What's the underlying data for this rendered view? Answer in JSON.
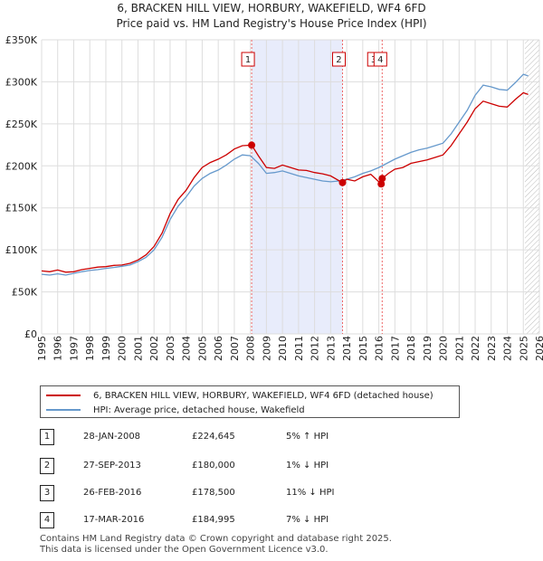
{
  "chart_data": {
    "type": "line",
    "title": "6, BRACKEN HILL VIEW, HORBURY, WAKEFIELD, WF4 6FD",
    "subtitle": "Price paid vs. HM Land Registry's House Price Index (HPI)",
    "xlim": [
      1995,
      2026
    ],
    "ylim": [
      0,
      350000
    ],
    "x_ticks": [
      "1995",
      "1996",
      "1997",
      "1998",
      "1999",
      "2000",
      "2001",
      "2002",
      "2003",
      "2004",
      "2005",
      "2006",
      "2007",
      "2008",
      "2009",
      "2010",
      "2011",
      "2012",
      "2013",
      "2014",
      "2015",
      "2016",
      "2017",
      "2018",
      "2019",
      "2020",
      "2021",
      "2022",
      "2023",
      "2024",
      "2025",
      "2026"
    ],
    "y_ticks": [
      {
        "value": 0,
        "label": "£0"
      },
      {
        "value": 50000,
        "label": "£50K"
      },
      {
        "value": 100000,
        "label": "£100K"
      },
      {
        "value": 150000,
        "label": "£150K"
      },
      {
        "value": 200000,
        "label": "£200K"
      },
      {
        "value": 250000,
        "label": "£250K"
      },
      {
        "value": 300000,
        "label": "£300K"
      },
      {
        "value": 350000,
        "label": "£350K"
      }
    ],
    "grid": true,
    "shaded_region": [
      2008.08,
      2013.74
    ],
    "future_hatch_from": 2025.1,
    "series": [
      {
        "name": "6, BRACKEN HILL VIEW, HORBURY, WAKEFIELD, WF4 6FD (detached house)",
        "color": "#cc0000",
        "points": [
          [
            1995,
            75000
          ],
          [
            1995.5,
            74000
          ],
          [
            1996,
            76000
          ],
          [
            1996.5,
            73500
          ],
          [
            1997,
            74000
          ],
          [
            1997.5,
            76500
          ],
          [
            1998,
            78000
          ],
          [
            1998.5,
            79500
          ],
          [
            1999,
            80000
          ],
          [
            1999.5,
            81500
          ],
          [
            2000,
            82000
          ],
          [
            2000.5,
            84000
          ],
          [
            2001,
            88000
          ],
          [
            2001.5,
            94000
          ],
          [
            2002,
            104000
          ],
          [
            2002.5,
            120000
          ],
          [
            2003,
            143000
          ],
          [
            2003.5,
            160000
          ],
          [
            2004,
            171000
          ],
          [
            2004.5,
            186000
          ],
          [
            2005,
            198000
          ],
          [
            2005.5,
            204000
          ],
          [
            2006,
            208000
          ],
          [
            2006.5,
            213000
          ],
          [
            2007,
            220000
          ],
          [
            2007.5,
            224000
          ],
          [
            2008.08,
            224645
          ],
          [
            2008.5,
            212000
          ],
          [
            2009,
            198000
          ],
          [
            2009.5,
            197000
          ],
          [
            2010,
            201000
          ],
          [
            2010.5,
            198000
          ],
          [
            2011,
            195000
          ],
          [
            2011.5,
            194500
          ],
          [
            2012,
            192000
          ],
          [
            2012.5,
            190500
          ],
          [
            2013,
            188000
          ],
          [
            2013.74,
            180000
          ],
          [
            2014,
            184000
          ],
          [
            2014.5,
            182000
          ],
          [
            2015,
            187000
          ],
          [
            2015.5,
            190000
          ],
          [
            2016.15,
            178500
          ],
          [
            2016.21,
            184995
          ],
          [
            2016.6,
            191000
          ],
          [
            2017,
            196000
          ],
          [
            2017.5,
            198000
          ],
          [
            2018,
            203000
          ],
          [
            2018.5,
            205000
          ],
          [
            2019,
            207000
          ],
          [
            2019.5,
            210000
          ],
          [
            2020,
            213000
          ],
          [
            2020.5,
            224000
          ],
          [
            2021,
            238000
          ],
          [
            2021.5,
            252000
          ],
          [
            2022,
            268000
          ],
          [
            2022.5,
            277000
          ],
          [
            2023,
            274000
          ],
          [
            2023.5,
            271000
          ],
          [
            2024,
            270000
          ],
          [
            2024.5,
            279000
          ],
          [
            2025,
            287000
          ],
          [
            2025.3,
            285000
          ]
        ]
      },
      {
        "name": "HPI: Average price, detached house, Wakefield",
        "color": "#6699cc",
        "points": [
          [
            1995,
            71000
          ],
          [
            1995.5,
            70000
          ],
          [
            1996,
            71500
          ],
          [
            1996.5,
            70000
          ],
          [
            1997,
            72000
          ],
          [
            1997.5,
            74000
          ],
          [
            1998,
            75500
          ],
          [
            1998.5,
            76500
          ],
          [
            1999,
            78000
          ],
          [
            1999.5,
            79000
          ],
          [
            2000,
            80500
          ],
          [
            2000.5,
            82000
          ],
          [
            2001,
            86000
          ],
          [
            2001.5,
            91000
          ],
          [
            2002,
            100000
          ],
          [
            2002.5,
            115000
          ],
          [
            2003,
            136000
          ],
          [
            2003.5,
            152000
          ],
          [
            2004,
            163000
          ],
          [
            2004.5,
            176000
          ],
          [
            2005,
            185000
          ],
          [
            2005.5,
            191000
          ],
          [
            2006,
            195000
          ],
          [
            2006.5,
            201000
          ],
          [
            2007,
            208000
          ],
          [
            2007.5,
            213000
          ],
          [
            2008,
            212000
          ],
          [
            2008.5,
            203000
          ],
          [
            2009,
            191000
          ],
          [
            2009.5,
            192000
          ],
          [
            2010,
            194000
          ],
          [
            2010.5,
            191000
          ],
          [
            2011,
            188000
          ],
          [
            2011.5,
            186000
          ],
          [
            2012,
            184000
          ],
          [
            2012.5,
            182000
          ],
          [
            2013,
            181000
          ],
          [
            2013.5,
            182000
          ],
          [
            2014,
            184000
          ],
          [
            2014.5,
            187000
          ],
          [
            2015,
            191000
          ],
          [
            2015.5,
            194000
          ],
          [
            2016,
            198000
          ],
          [
            2016.5,
            203000
          ],
          [
            2017,
            208000
          ],
          [
            2017.5,
            212000
          ],
          [
            2018,
            216000
          ],
          [
            2018.5,
            219000
          ],
          [
            2019,
            221000
          ],
          [
            2019.5,
            224000
          ],
          [
            2020,
            227000
          ],
          [
            2020.5,
            238000
          ],
          [
            2021,
            252000
          ],
          [
            2021.5,
            266000
          ],
          [
            2022,
            284000
          ],
          [
            2022.5,
            296000
          ],
          [
            2023,
            294000
          ],
          [
            2023.5,
            291000
          ],
          [
            2024,
            290000
          ],
          [
            2024.5,
            299000
          ],
          [
            2025,
            309000
          ],
          [
            2025.3,
            307000
          ]
        ]
      }
    ],
    "annotations": [
      {
        "label": "1",
        "x": 2008.08,
        "y": 224645
      },
      {
        "label": "2",
        "x": 2013.74,
        "y": 180000
      },
      {
        "label": "3",
        "x": 2016.15,
        "y": 178500
      },
      {
        "label": "4",
        "x": 2016.21,
        "y": 184995
      }
    ],
    "flag_boxes": [
      "1",
      "2",
      "3",
      "4"
    ]
  },
  "legend": [
    {
      "label": "6, BRACKEN HILL VIEW, HORBURY, WAKEFIELD, WF4 6FD (detached house)",
      "color": "#cc0000"
    },
    {
      "label": "HPI: Average price, detached house, Wakefield",
      "color": "#6699cc"
    }
  ],
  "transactions": [
    {
      "num": "1",
      "date": "28-JAN-2008",
      "price": "£224,645",
      "hpi": "5% ↑ HPI"
    },
    {
      "num": "2",
      "date": "27-SEP-2013",
      "price": "£180,000",
      "hpi": "1% ↓ HPI"
    },
    {
      "num": "3",
      "date": "26-FEB-2016",
      "price": "£178,500",
      "hpi": "11% ↓ HPI"
    },
    {
      "num": "4",
      "date": "17-MAR-2016",
      "price": "£184,995",
      "hpi": "7% ↓ HPI"
    }
  ],
  "footer": {
    "line1": "Contains HM Land Registry data © Crown copyright and database right 2025.",
    "line2": "This data is licensed under the Open Government Licence v3.0."
  }
}
